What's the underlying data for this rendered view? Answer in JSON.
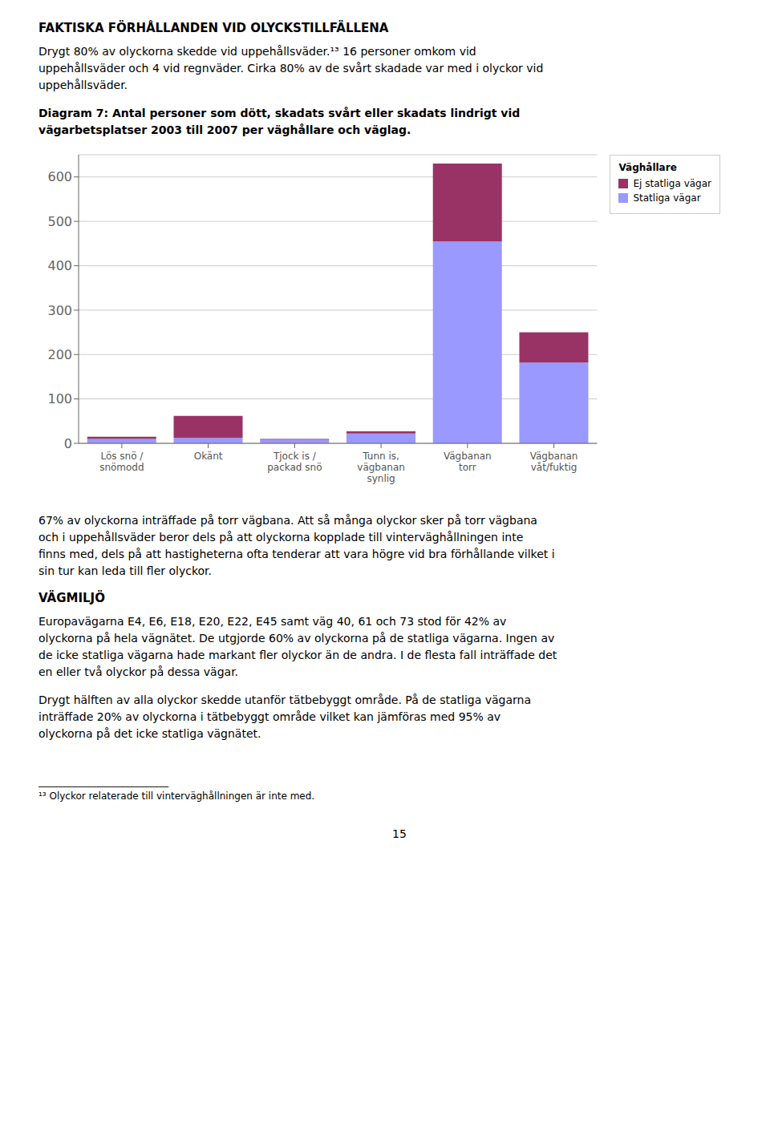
{
  "chart_data": {
    "type": "bar",
    "stacked": true,
    "title": "Diagram 7: Antal personer som dött, skadats svårt eller skadats lindrigt vid\nvägarbetsplatser 2003 till 2007 per väghållare och väglag.",
    "categories": [
      "Lös snö /\nsnömodd",
      "Okänt",
      "Tjock is /\npackad snö",
      "Tunn is,\nvägbanan\nsynlig",
      "Vägbanan\ntorr",
      "Vägbanan\nvåt/fuktig"
    ],
    "series": [
      {
        "name": "Statliga vägar",
        "color": "#9999ff",
        "values": [
          10,
          12,
          8,
          22,
          455,
          182
        ]
      },
      {
        "name": "Ej statliga vägar",
        "color": "#993366",
        "values": [
          5,
          50,
          2,
          5,
          175,
          68
        ]
      }
    ],
    "ylim": [
      0,
      650
    ],
    "yticks": [
      0,
      100,
      200,
      300,
      400,
      500,
      600
    ],
    "grid": true,
    "legend": "upper right",
    "legend_title": "Väghållare",
    "annotations": {
      "above": [
        {
          "heading": "FAKTISKA FÖRHÅLLANDEN VID OLYCKSTILLFÄLLENA",
          "paragraphs": [
            "Drygt 80% av olyckorna skedde vid uppehållsväder.¹³ 16 personer omkom vid\nuppehållsväder och 4 vid regnväder. Cirka 80% av de svårt skadade var med i olyckor vid\nuppehållsväder."
          ]
        }
      ],
      "below": [
        {
          "paragraphs": [
            "67% av olyckorna inträffade på torr vägbana. Att så många olyckor sker på torr vägbana\noch i uppehållsväder beror dels på att olyckorna kopplade till vinterväghållningen inte\nfinns med, dels på att hastigheterna ofta tenderar att vara högre vid bra förhållande vilket i\nsin tur kan leda till fler olyckor."
          ]
        },
        {
          "heading": "VÄGMILJÖ",
          "paragraphs": [
            "Europavägarna E4, E6, E18, E20, E22, E45 samt väg 40, 61 och 73 stod för 42% av\nolyckorna på hela vägnätet. De utgjorde 60% av olyckorna på de statliga vägarna. Ingen av\nde icke statliga vägarna hade markant fler olyckor än de andra. I de flesta fall inträffade det\nen eller två olyckor på dessa vägar.",
            "Drygt hälften av alla olyckor skedde utanför tätbebyggt område. På de statliga vägarna\ninträffade 20% av olyckorna i tätbebyggt område vilket kan jämföras med 95% av\nolyckorna på det icke statliga vägnätet."
          ]
        }
      ],
      "footnote": [
        "___________________________",
        "¹³ Olyckor relaterade till vinterväghållningen är inte med."
      ],
      "page_number": "15"
    }
  }
}
